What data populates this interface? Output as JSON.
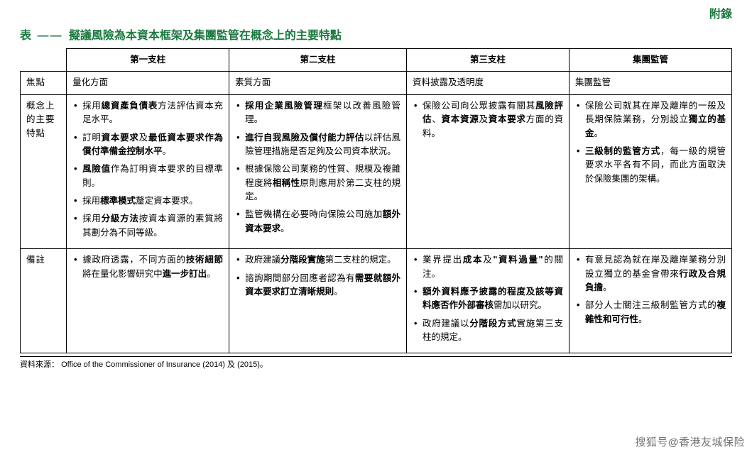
{
  "header": {
    "appendix": "附錄"
  },
  "title": {
    "prefix": "表",
    "dash": "——",
    "text": "擬議風險為本資本框架及集團監管在概念上的主要特點"
  },
  "columns": {
    "rowhead_focus": "焦點",
    "rowhead_concept": "概念上的主要特點",
    "rowhead_notes": "備註",
    "pillar1": "第一支柱",
    "pillar2": "第二支柱",
    "pillar3": "第三支柱",
    "group": "集團監管"
  },
  "focus": {
    "p1": "量化方面",
    "p2": "素質方面",
    "p3": "資料披露及透明度",
    "g": "集團監管"
  },
  "concept": {
    "p1": [
      {
        "pre": "採用",
        "b": "總資產負債表",
        "post": "方法評估資本充足水平。"
      },
      {
        "pre": "訂明",
        "b": "資本要求",
        "mid": "及",
        "b2": "最低資本要求作為償付準備金控制水平",
        "post": "。"
      },
      {
        "pre": "",
        "b": "風險值",
        "post": "作為訂明資本要求的目標準則。"
      },
      {
        "pre": "採用",
        "b": "標準模式",
        "post": "釐定資本要求。"
      },
      {
        "pre": "採用",
        "b": "分級方法",
        "post": "按資本資源的素質將其劃分為不同等級。"
      }
    ],
    "p2": [
      {
        "pre": "",
        "b": "採用企業風險管理",
        "post": "框架以改善風險管理。"
      },
      {
        "pre": "",
        "b": "進行自我風險及償付能力評估",
        "post": "以評估風險管理措施是否足夠及公司資本狀況。"
      },
      {
        "pre": "根據保險公司業務的性質、規模及複雜程度將",
        "b": "相稱性",
        "post": "原則應用於第二支柱的規定。"
      },
      {
        "pre": "監管機構在必要時向保險公司施加",
        "b": "額外資本要求",
        "post": "。"
      }
    ],
    "p3": [
      {
        "pre": "保險公司向公眾披露有關其",
        "b": "風險評估",
        "mid": "、",
        "b2": "資本資源",
        "mid2": "及",
        "b3": "資本要求",
        "post": "方面的資料。"
      }
    ],
    "g": [
      {
        "pre": "保險公司就其在岸及離岸的一般及長期保險業務，分別設立",
        "b": "獨立的基金",
        "post": "。"
      },
      {
        "pre": "",
        "b": "三級制的監管方式",
        "post": "，每一級的規管要求水平各有不同，而此方面取決於保險集團的架構。"
      }
    ]
  },
  "notes": {
    "p1": [
      {
        "pre": "據政府透露，不同方面的",
        "b": "技術細節",
        "mid": "將在量化影響研究中",
        "b2": "進一步訂出",
        "post": "。"
      }
    ],
    "p2": [
      {
        "pre": "政府建議",
        "b": "分階段實施",
        "post": "第二支柱的規定。"
      },
      {
        "pre": "諮詢期間部分回應者認為有",
        "b": "需要就額外資本要求訂立清晰規則",
        "post": "。"
      }
    ],
    "p3": [
      {
        "pre": "業界提出",
        "b": "成本",
        "mid": "及",
        "b2": "\"資料過量\"",
        "post": "的關注。"
      },
      {
        "pre": "",
        "b": "額外資料應予披露的程度及該等資料應否作外部審核",
        "post": "需加以研究。"
      },
      {
        "pre": "政府建議以",
        "b": "分階段方式",
        "post": "實施第三支柱的規定。"
      }
    ],
    "g": [
      {
        "pre": "有意見認為就在岸及離岸業務分別設立獨立的基金會帶來",
        "b": "行政及合規負擔",
        "post": "。"
      },
      {
        "pre": "部分人士關注三級制監管方式的",
        "b": "複雜性和可行性",
        "post": "。"
      }
    ]
  },
  "source": {
    "label": "資料來源：",
    "text": "Office of the Commissioner of Insurance (2014) 及 (2015)。"
  },
  "watermark": {
    "prefix": "搜狐号",
    "at": "@",
    "name": "香港友城保险"
  },
  "colors": {
    "accent": "#1a7a3e",
    "text": "#000000",
    "background": "#ffffff"
  }
}
